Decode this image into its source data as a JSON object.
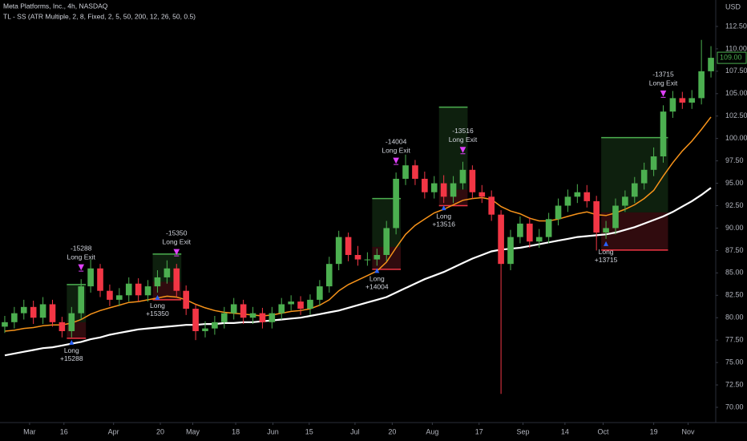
{
  "chart_data": {
    "type": "candlestick",
    "title": "Meta Platforms, Inc., 4h, NASDAQ",
    "subtitle": "TL - SS (ATR Multiple, 2, 8, Fixed, 2, 5, 50, 200, 12, 26, 50, 0.5)",
    "y_axis_label": "USD",
    "ylim": [
      68.3,
      115.45
    ],
    "yticks": [
      {
        "value": 70,
        "label": "70.00"
      },
      {
        "value": 72.5,
        "label": "72.50"
      },
      {
        "value": 75,
        "label": "75.00"
      },
      {
        "value": 77.5,
        "label": "77.50"
      },
      {
        "value": 80,
        "label": "80.00"
      },
      {
        "value": 82.5,
        "label": "82.50"
      },
      {
        "value": 85,
        "label": "85.00"
      },
      {
        "value": 87.5,
        "label": "87.50"
      },
      {
        "value": 90,
        "label": "90.00"
      },
      {
        "value": 92.5,
        "label": "92.50"
      },
      {
        "value": 95,
        "label": "95.00"
      },
      {
        "value": 97.5,
        "label": "97.50"
      },
      {
        "value": 100,
        "label": "100.00"
      },
      {
        "value": 102.5,
        "label": "102.50"
      },
      {
        "value": 105,
        "label": "105.00"
      },
      {
        "value": 107.5,
        "label": "107.50"
      },
      {
        "value": 110,
        "label": "110.00"
      },
      {
        "value": 112.5,
        "label": "112.50"
      }
    ],
    "xlim": [
      -0.5,
      74.5
    ],
    "xticks": [
      {
        "value": 2.6,
        "label": "Mar"
      },
      {
        "value": 6.2,
        "label": "16"
      },
      {
        "value": 11.4,
        "label": "Apr"
      },
      {
        "value": 16.3,
        "label": "20"
      },
      {
        "value": 19.7,
        "label": "May"
      },
      {
        "value": 24.2,
        "label": "18"
      },
      {
        "value": 28.1,
        "label": "Jun"
      },
      {
        "value": 31.9,
        "label": "15"
      },
      {
        "value": 36.7,
        "label": "Jul"
      },
      {
        "value": 40.6,
        "label": "20"
      },
      {
        "value": 44.8,
        "label": "Aug"
      },
      {
        "value": 49.7,
        "label": "17"
      },
      {
        "value": 54.3,
        "label": "Sep"
      },
      {
        "value": 58.7,
        "label": "14"
      },
      {
        "value": 62.7,
        "label": "Oct"
      },
      {
        "value": 68,
        "label": "19"
      },
      {
        "value": 71.6,
        "label": "Nov"
      }
    ],
    "color_up": "#4caf50",
    "color_down": "#f23645",
    "candles": {
      "x": [
        0,
        1,
        2,
        3,
        4,
        5,
        6,
        7,
        8,
        9,
        10,
        11,
        12,
        13,
        14,
        15,
        16,
        17,
        18,
        19,
        20,
        21,
        22,
        23,
        24,
        25,
        26,
        27,
        28,
        29,
        30,
        31,
        32,
        33,
        34,
        35,
        36,
        37,
        38,
        39,
        40,
        41,
        42,
        43,
        44,
        45,
        46,
        47,
        48,
        49,
        50,
        51,
        52,
        53,
        54,
        55,
        56,
        57,
        58,
        59,
        60,
        61,
        62,
        63,
        64,
        65,
        66,
        67,
        68,
        69,
        70,
        71,
        72,
        73,
        74
      ],
      "open": [
        79,
        79.5,
        80.5,
        81.2,
        80,
        81.5,
        79.5,
        78.5,
        80.5,
        83.5,
        85.5,
        83,
        82,
        82.5,
        83.8,
        82.5,
        83.5,
        84.5,
        85.5,
        83,
        81,
        78.5,
        78.8,
        79.5,
        80.5,
        81.5,
        80,
        80.5,
        79.5,
        80.5,
        81.5,
        81.8,
        81,
        82,
        83.5,
        86,
        89,
        87,
        86.5,
        86.5,
        87,
        90,
        95.5,
        97,
        95.5,
        94,
        95,
        93.5,
        95,
        96.5,
        94,
        93.5,
        91.5,
        86,
        89,
        90.5,
        88.5,
        89,
        91,
        92.5,
        93.5,
        94,
        93,
        89.5,
        90,
        92.5,
        93.5,
        95,
        96.5,
        98,
        103,
        104.5,
        104,
        104.5,
        107.5
      ],
      "high": [
        80.2,
        81.2,
        82,
        81.9,
        82.3,
        82,
        80.1,
        81.2,
        84.3,
        86.5,
        86,
        83.7,
        83.3,
        84.5,
        84.4,
        84.2,
        85.3,
        86.4,
        86,
        83.6,
        81.5,
        79.6,
        80.2,
        81.2,
        82.2,
        82,
        81.2,
        81.1,
        81.2,
        82.2,
        82.5,
        82.4,
        82.6,
        84.2,
        86.8,
        89.7,
        89.5,
        88,
        87.3,
        87.7,
        90.8,
        96.2,
        98.2,
        97.6,
        96.3,
        95.8,
        95.9,
        95.8,
        97.4,
        97,
        94.8,
        94.2,
        92,
        89.8,
        91.3,
        91.2,
        89.9,
        91.7,
        93.3,
        94.3,
        94.9,
        94.8,
        93.6,
        90.8,
        93.3,
        94.2,
        95.7,
        97.3,
        99,
        103.7,
        105.3,
        105.2,
        105.4,
        111,
        110.3
      ],
      "low": [
        78.3,
        78.8,
        79.8,
        79.3,
        79.3,
        79,
        77.8,
        77.8,
        79.8,
        82.8,
        82.3,
        81.3,
        81.3,
        81.8,
        81.8,
        81.8,
        82.8,
        83.8,
        82.3,
        80.3,
        77.5,
        77.8,
        78.1,
        78.8,
        79.8,
        79.3,
        79.3,
        78.8,
        78.8,
        79.8,
        80.8,
        80.3,
        80.3,
        81.3,
        82.8,
        85.3,
        86.3,
        85.8,
        85.8,
        85.8,
        86.3,
        89.3,
        94.8,
        94.8,
        93.3,
        93.3,
        92.8,
        92.8,
        94.3,
        93.3,
        92.8,
        90.8,
        71.5,
        85.3,
        88.3,
        87.8,
        87.8,
        88.3,
        90.3,
        91.8,
        92.8,
        92.3,
        87.5,
        88.8,
        89.3,
        91.8,
        92.8,
        94.3,
        95.8,
        97.3,
        102.3,
        103.3,
        103.3,
        103.8,
        106.8
      ],
      "close": [
        79.5,
        80.5,
        81.2,
        80,
        81.5,
        79.5,
        78.5,
        80.5,
        83.5,
        85.5,
        83,
        82,
        82.5,
        83.8,
        82.5,
        83.5,
        84.5,
        85.5,
        83,
        81,
        78.5,
        78.8,
        79.5,
        80.5,
        81.5,
        80,
        80.5,
        79.5,
        80.5,
        81.5,
        81.8,
        81,
        82,
        83.5,
        86,
        89,
        87,
        86.5,
        86.5,
        87,
        90,
        95.5,
        97,
        95.5,
        94,
        95,
        93.5,
        95,
        96.5,
        94,
        93.5,
        91.5,
        86,
        89,
        90.5,
        88.5,
        89,
        91,
        92.5,
        93.5,
        94,
        93,
        89.5,
        90,
        92.5,
        93.5,
        95,
        96.5,
        98,
        103,
        104.5,
        104,
        104.5,
        107.5,
        109
      ]
    },
    "series": [
      {
        "color": "#f7931a",
        "values": [
          78.5,
          78.6,
          78.8,
          78.9,
          79.1,
          79.2,
          79.2,
          79.4,
          79.8,
          80.4,
          80.8,
          81.1,
          81.4,
          81.7,
          81.8,
          82,
          82.2,
          82.4,
          82.3,
          82,
          81.5,
          81.1,
          80.8,
          80.6,
          80.5,
          80.4,
          80.3,
          80.2,
          80.3,
          80.5,
          80.7,
          80.8,
          81,
          81.4,
          82,
          83,
          83.7,
          84.2,
          84.7,
          85.2,
          86.2,
          87.8,
          89.3,
          90.3,
          91,
          91.7,
          92.1,
          92.6,
          93.1,
          93.3,
          93.4,
          93.2,
          92.4,
          91.9,
          91.6,
          91.1,
          90.8,
          90.8,
          91,
          91.3,
          91.6,
          91.8,
          91.5,
          91.4,
          91.7,
          92.1,
          92.6,
          93.3,
          94.2,
          95.8,
          97.3,
          98.6,
          99.7,
          101,
          102.4
        ]
      },
      {
        "color": "#ffffff",
        "values": [
          75.8,
          76,
          76.2,
          76.4,
          76.6,
          76.7,
          76.9,
          77.1,
          77.3,
          77.6,
          77.8,
          78.1,
          78.3,
          78.5,
          78.7,
          78.8,
          78.9,
          79,
          79.1,
          79.2,
          79.2,
          79.3,
          79.3,
          79.4,
          79.4,
          79.5,
          79.5,
          79.6,
          79.7,
          79.8,
          79.9,
          80,
          80.2,
          80.4,
          80.6,
          80.8,
          81.1,
          81.4,
          81.7,
          82,
          82.3,
          82.8,
          83.3,
          83.8,
          84.3,
          84.7,
          85.1,
          85.6,
          86.1,
          86.6,
          87,
          87.4,
          87.6,
          87.7,
          87.8,
          88,
          88.2,
          88.4,
          88.6,
          88.8,
          89,
          89.1,
          89.2,
          89.3,
          89.5,
          89.8,
          90.1,
          90.5,
          90.9,
          91.3,
          91.8,
          92.4,
          93,
          93.7,
          94.5
        ]
      }
    ],
    "trades": [
      {
        "entry_x": 7,
        "exit_x": 8,
        "entry_price": 79.5,
        "target": 83.7,
        "stop": 77.7,
        "exit_pnl": "-15288",
        "exit_label": "Long Exit",
        "entry_label": "Long",
        "entry_pnl": "+15288"
      },
      {
        "entry_x": 16,
        "exit_x": 18,
        "entry_price": 84,
        "target": 87.1,
        "stop": 82,
        "exit_pnl": "-15350",
        "exit_label": "Long Exit",
        "entry_label": "Long",
        "entry_pnl": "+15350"
      },
      {
        "entry_x": 39,
        "exit_x": 41,
        "entry_price": 87.9,
        "target": 93.3,
        "stop": 85.4,
        "exit_pnl": "-14004",
        "exit_label": "Long Exit",
        "entry_label": "Long",
        "entry_pnl": "+14004"
      },
      {
        "entry_x": 46,
        "exit_x": 48,
        "entry_price": 94.3,
        "target": 103.5,
        "stop": 92.5,
        "exit_pnl": "-13516",
        "exit_label": "Long Exit",
        "entry_label": "Long",
        "entry_pnl": "+13516"
      },
      {
        "entry_x": 63,
        "exit_x": 69,
        "entry_price": 91.75,
        "target": 100.1,
        "stop": 87.55,
        "exit_pnl": "-13715",
        "exit_label": "Long Exit",
        "entry_label": "Long",
        "entry_pnl": "+13715"
      }
    ],
    "last_price": {
      "value": 109,
      "label": "109.00"
    }
  }
}
